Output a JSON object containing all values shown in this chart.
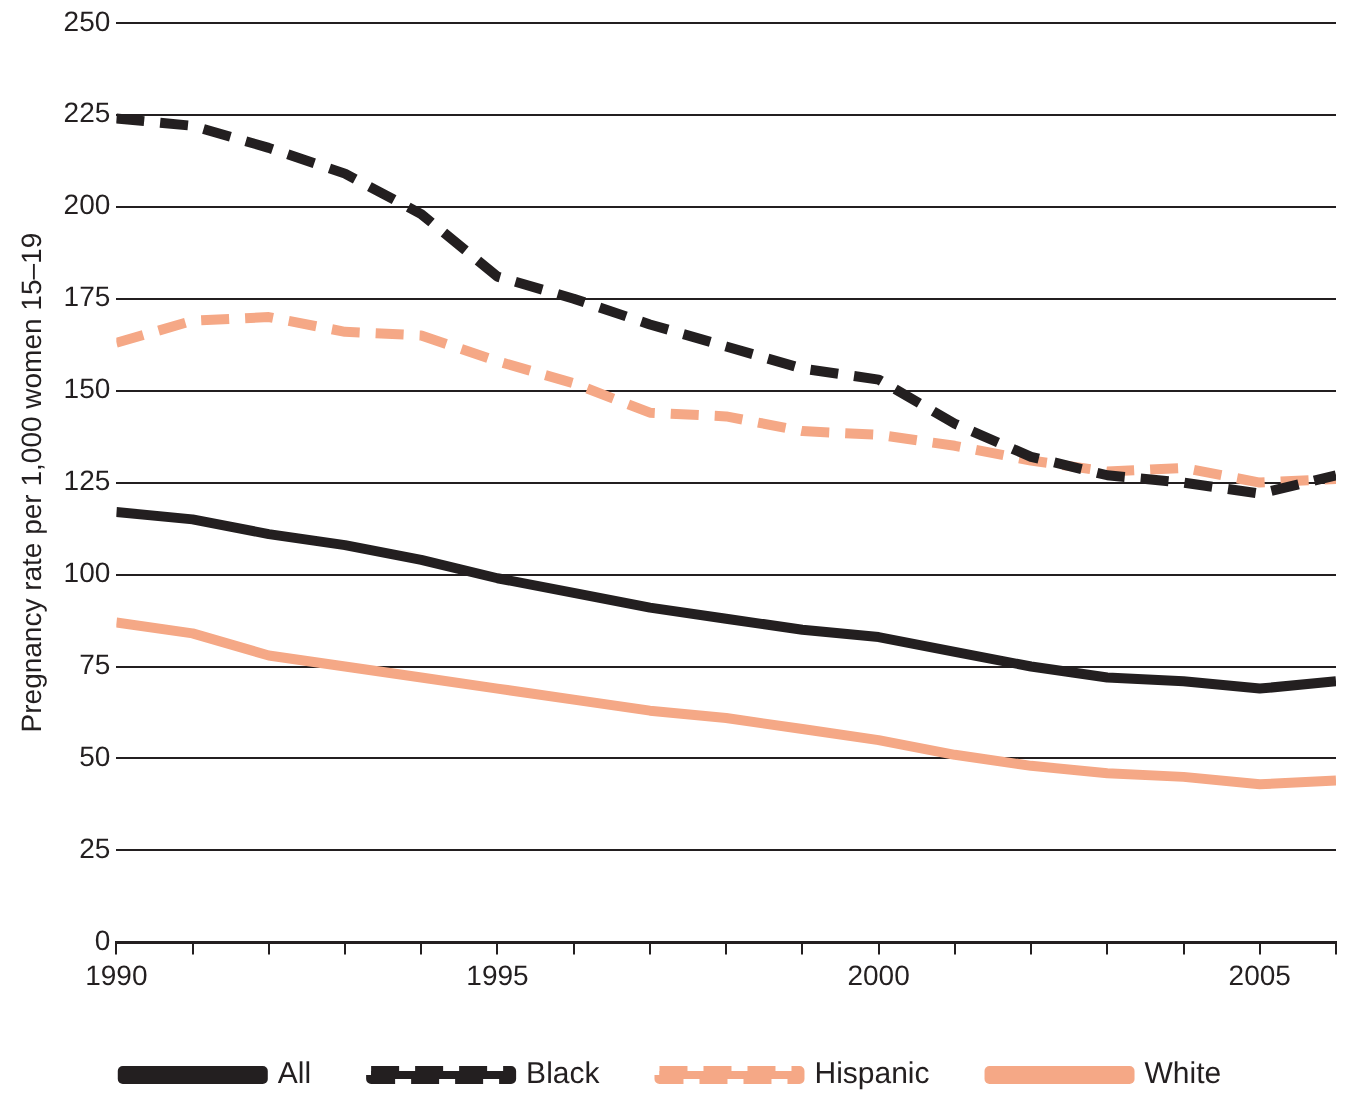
{
  "chart_data": {
    "type": "line",
    "ylabel": "Pregnancy rate per 1,000 women 15–19",
    "x": [
      1990,
      1991,
      1992,
      1993,
      1994,
      1995,
      1996,
      1997,
      1998,
      1999,
      2000,
      2001,
      2002,
      2003,
      2004,
      2005,
      2006
    ],
    "series": [
      {
        "name": "All",
        "color": "#231f20",
        "line_style": "solid",
        "values": [
          117,
          115,
          111,
          108,
          104,
          99,
          95,
          91,
          88,
          85,
          83,
          79,
          75,
          72,
          71,
          69,
          71
        ]
      },
      {
        "name": "Black",
        "color": "#231f20",
        "line_style": "dashed",
        "values": [
          224,
          222,
          216,
          209,
          198,
          181,
          175,
          168,
          162,
          156,
          153,
          141,
          132,
          127,
          125,
          122,
          127
        ]
      },
      {
        "name": "Hispanic",
        "color": "#f5a886",
        "line_style": "dashed",
        "values": [
          163,
          169,
          170,
          166,
          165,
          158,
          152,
          144,
          143,
          139,
          138,
          135,
          131,
          128,
          129,
          125,
          126
        ]
      },
      {
        "name": "White",
        "color": "#f5a886",
        "line_style": "solid",
        "values": [
          87,
          84,
          78,
          75,
          72,
          69,
          66,
          63,
          61,
          58,
          55,
          51,
          48,
          46,
          45,
          43,
          44
        ]
      }
    ],
    "xlim": [
      1990,
      2006
    ],
    "xticks": [
      1990,
      {
        "value": 1991,
        "label": null
      },
      {
        "value": 1992,
        "label": null
      },
      {
        "value": 1993,
        "label": null
      },
      {
        "value": 1994,
        "label": null
      },
      1995,
      {
        "value": 1996,
        "label": null
      },
      {
        "value": 1997,
        "label": null
      },
      {
        "value": 1998,
        "label": null
      },
      {
        "value": 1999,
        "label": null
      },
      2000,
      {
        "value": 2001,
        "label": null
      },
      {
        "value": 2002,
        "label": null
      },
      {
        "value": 2003,
        "label": null
      },
      {
        "value": 2004,
        "label": null
      },
      2005,
      {
        "value": 2006,
        "label": null
      }
    ],
    "ylim": [
      0,
      250
    ],
    "yticks": [
      0,
      25,
      50,
      75,
      100,
      125,
      150,
      175,
      200,
      225,
      250
    ],
    "grid": "y",
    "legend": "bottom",
    "marker": "none"
  }
}
